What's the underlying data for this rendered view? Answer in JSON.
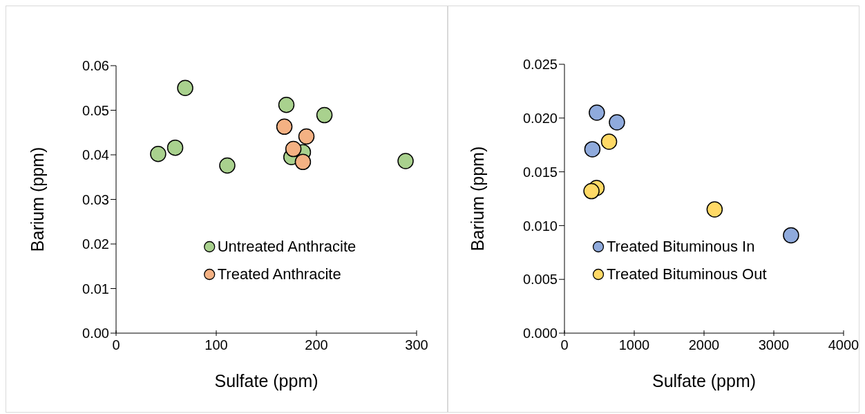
{
  "chart_data": [
    {
      "type": "scatter",
      "xlabel": "Sulfate (ppm)",
      "ylabel": "Barium (ppm)",
      "xlim": [
        0,
        300
      ],
      "xticks": [
        0,
        100,
        200,
        300
      ],
      "ylim": [
        0,
        0.06
      ],
      "yticks": [
        {
          "value": 0,
          "label": "0.00"
        },
        {
          "value": 0.01,
          "label": "0.01"
        },
        {
          "value": 0.02,
          "label": "0.02"
        },
        {
          "value": 0.03,
          "label": "0.03"
        },
        {
          "value": 0.04,
          "label": "0.04"
        },
        {
          "value": 0.05,
          "label": "0.05"
        },
        {
          "value": 0.06,
          "label": "0.06"
        }
      ],
      "grid": false,
      "legend": "bottom",
      "marker": "circle",
      "series": [
        {
          "name": "Untreated Anthracite",
          "color": "#a9d18e",
          "x": [
            42,
            59,
            69,
            111,
            170,
            208,
            289,
            175,
            186.5
          ],
          "values": [
            0.0402,
            0.0416,
            0.055,
            0.0376,
            0.0512,
            0.0489,
            0.0386,
            0.0395,
            0.0406
          ]
        },
        {
          "name": "Treated Anthracite",
          "color": "#f4b183",
          "x": [
            168,
            190,
            177,
            186.5
          ],
          "values": [
            0.0463,
            0.0441,
            0.0413,
            0.0384
          ]
        }
      ]
    },
    {
      "type": "scatter",
      "xlabel": "Sulfate (ppm)",
      "ylabel": "Barium (ppm)",
      "xlim": [
        0,
        4000
      ],
      "xticks": [
        0,
        1000,
        2000,
        3000,
        4000
      ],
      "ylim": [
        0,
        0.025
      ],
      "yticks": [
        {
          "value": 0,
          "label": "0.000"
        },
        {
          "value": 0.005,
          "label": "0.005"
        },
        {
          "value": 0.01,
          "label": "0.010"
        },
        {
          "value": 0.015,
          "label": "0.015"
        },
        {
          "value": 0.02,
          "label": "0.020"
        },
        {
          "value": 0.025,
          "label": "0.025"
        }
      ],
      "grid": false,
      "legend": "bottom left",
      "marker": "circle",
      "series": [
        {
          "name": "Treated Bituminous In",
          "color": "#8faadc",
          "x": [
            464,
            752,
            400,
            3247
          ],
          "values": [
            0.0205,
            0.0196,
            0.0171,
            0.0091
          ]
        },
        {
          "name": "Treated Bituminous Out",
          "color": "#ffd966",
          "x": [
            639,
            460,
            387,
            2152
          ],
          "values": [
            0.0178,
            0.0135,
            0.0132,
            0.0115
          ]
        }
      ]
    }
  ]
}
